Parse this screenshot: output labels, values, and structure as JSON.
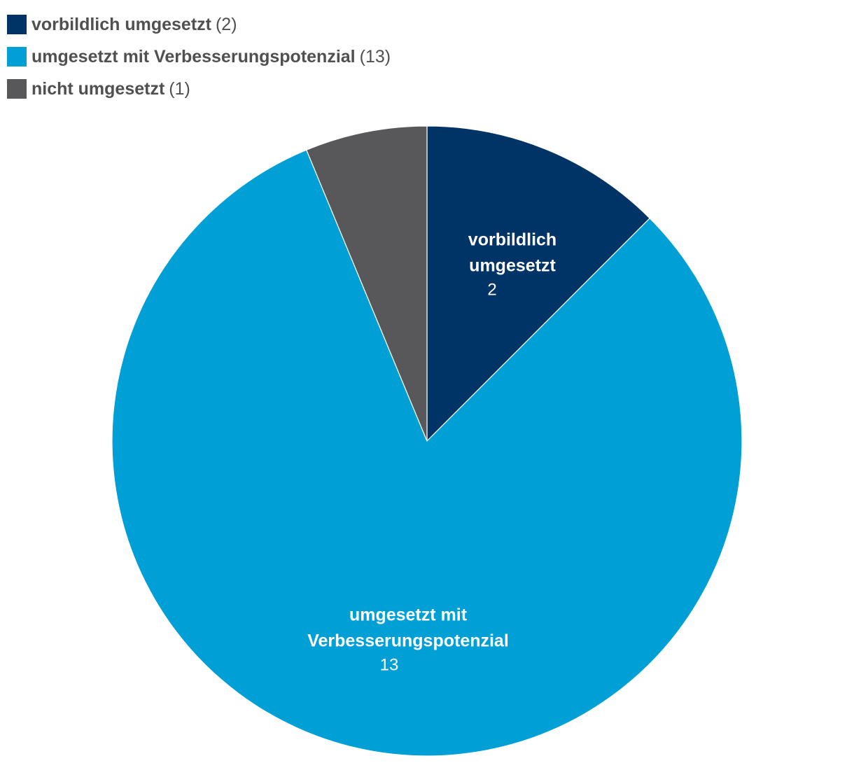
{
  "chart_data": {
    "type": "pie",
    "start_angle_deg": 0,
    "direction": "clockwise",
    "slices": [
      {
        "name": "vorbildlich umgesetzt",
        "value": 2,
        "count_label": "(2)",
        "value_label": "2",
        "label_lines": [
          "vorbildlich",
          "umgesetzt"
        ],
        "color": "#003366"
      },
      {
        "name": "umgesetzt mit Verbesserungspotenzial",
        "value": 13,
        "count_label": "(13)",
        "value_label": "13",
        "label_lines": [
          "umgesetzt mit",
          "Verbesserungspotenzial"
        ],
        "color": "#009fd6"
      },
      {
        "name": "nicht umgesetzt",
        "value": 1,
        "count_label": "(1)",
        "value_label": "",
        "label_lines": [],
        "color": "#58585a"
      }
    ],
    "legend_position": "top-left"
  }
}
